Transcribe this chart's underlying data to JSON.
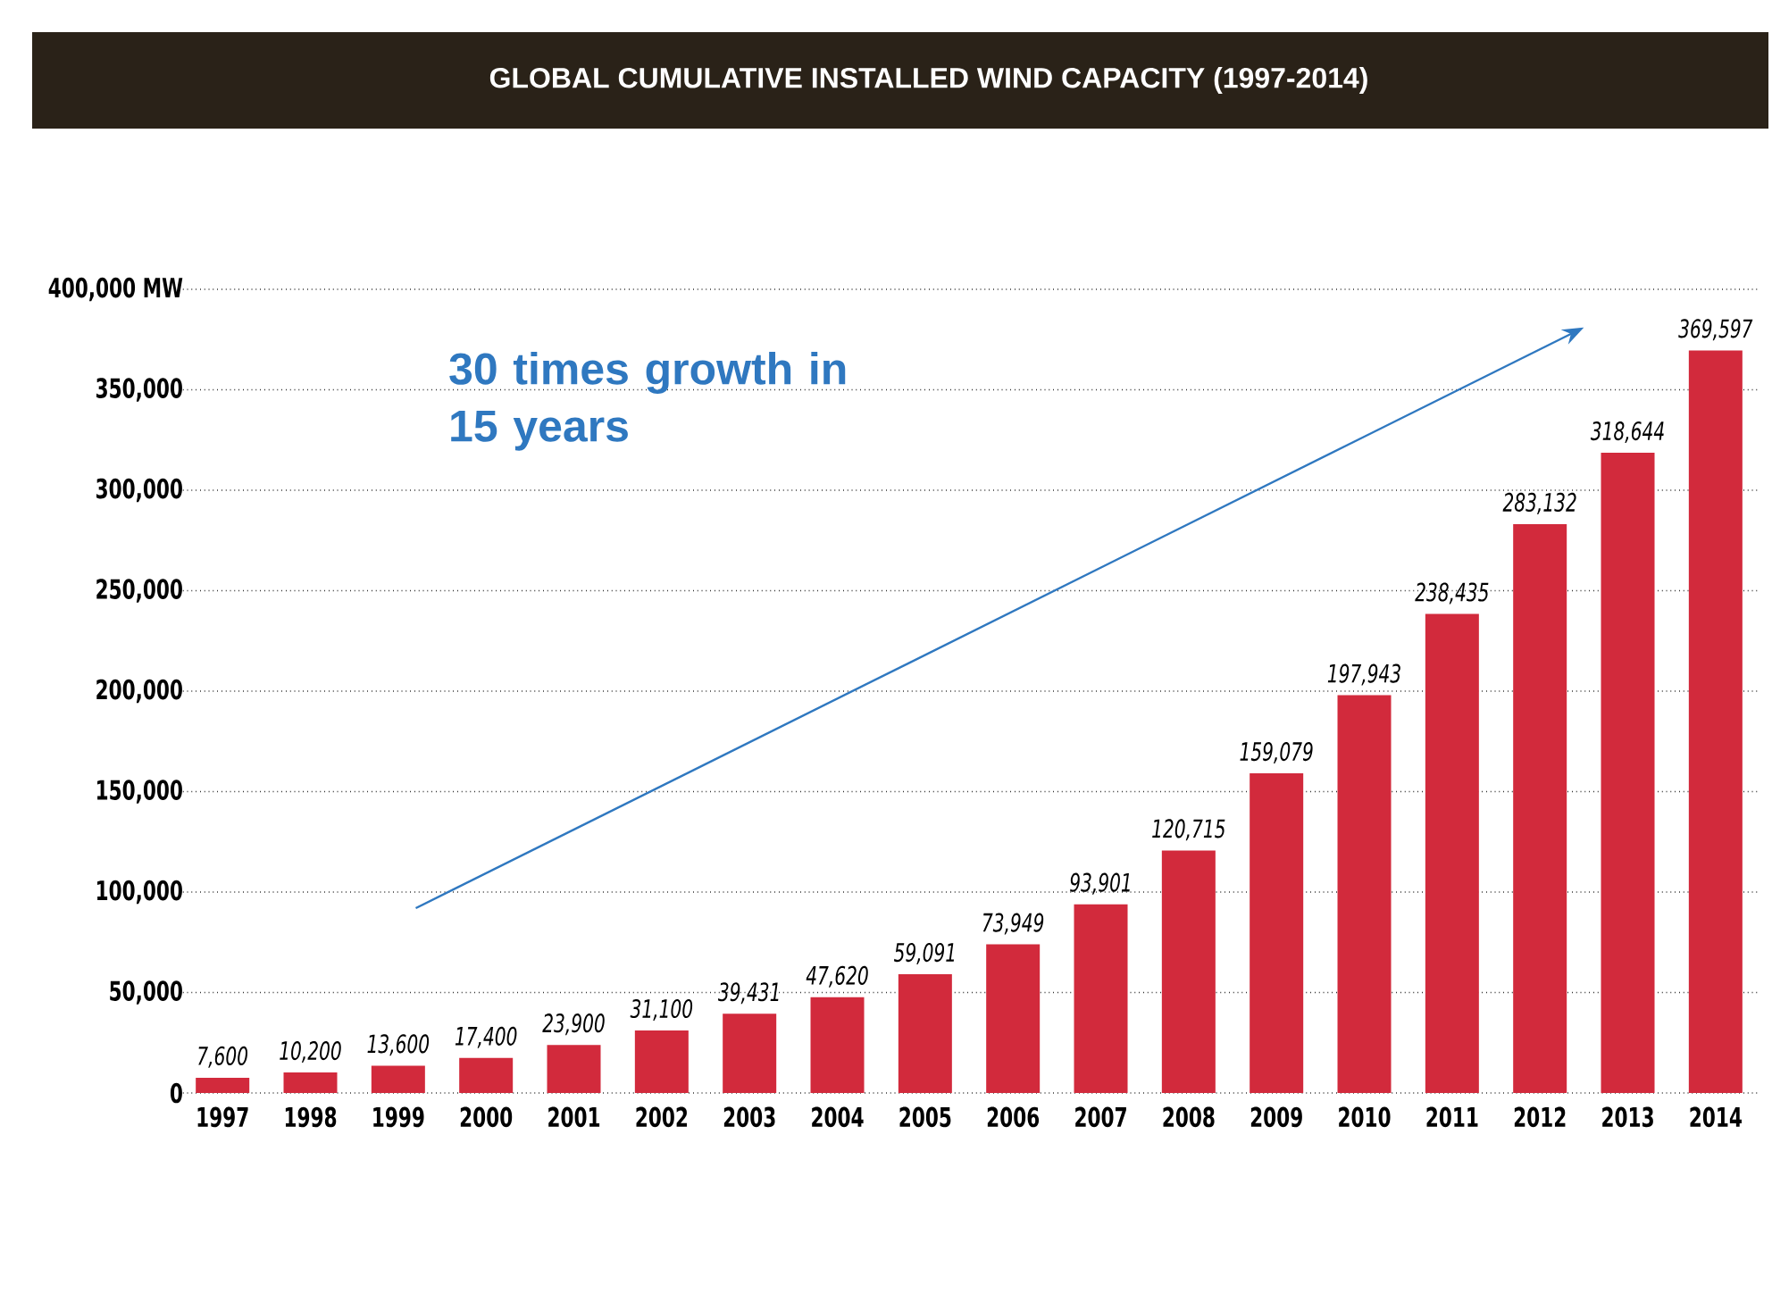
{
  "chart_data": {
    "type": "bar",
    "title": "GLOBAL CUMULATIVE INSTALLED WIND CAPACITY (1997-2014)",
    "categories": [
      "1997",
      "1998",
      "1999",
      "2000",
      "2001",
      "2002",
      "2003",
      "2004",
      "2005",
      "2006",
      "2007",
      "2008",
      "2009",
      "2010",
      "2011",
      "2012",
      "2013",
      "2014"
    ],
    "values": [
      7600,
      10200,
      13600,
      17400,
      23900,
      31100,
      39431,
      47620,
      59091,
      73949,
      93901,
      120715,
      159079,
      197943,
      238435,
      283132,
      318644,
      369597
    ],
    "color": "#d22a3c",
    "ylim": [
      0,
      400000
    ],
    "yticks": [
      {
        "value": 0,
        "label": "0"
      },
      {
        "value": 50000,
        "label": "50,000"
      },
      {
        "value": 100000,
        "label": "100,000"
      },
      {
        "value": 150000,
        "label": "150,000"
      },
      {
        "value": 200000,
        "label": "200,000"
      },
      {
        "value": 250000,
        "label": "250,000"
      },
      {
        "value": 300000,
        "label": "300,000"
      },
      {
        "value": 350000,
        "label": "350,000"
      },
      {
        "value": 400000,
        "label": "400,000 MW"
      }
    ],
    "grid": "y",
    "value_labels": [
      "7,600",
      "10,200",
      "13,600",
      "17,400",
      "23,900",
      "31,100",
      "39,431",
      "47,620",
      "59,091",
      "73,949",
      "93,901",
      "120,715",
      "159,079",
      "197,943",
      "238,435",
      "283,132",
      "318,644",
      "369,597"
    ],
    "annotations": [
      "30 times growth in 15 years"
    ]
  }
}
